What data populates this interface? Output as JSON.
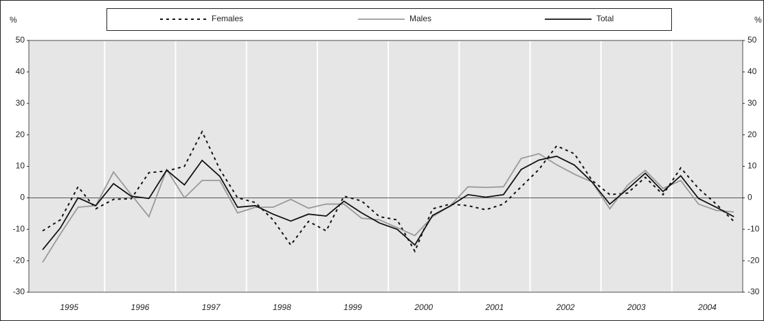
{
  "chart_data": {
    "type": "line",
    "y_unit_label": "%",
    "categories": [
      null,
      "1995",
      null,
      null,
      null,
      "1996",
      null,
      null,
      null,
      "1997",
      null,
      null,
      null,
      "1998",
      null,
      null,
      null,
      "1999",
      null,
      null,
      null,
      "2000",
      null,
      null,
      null,
      "2001",
      null,
      null,
      null,
      "2002",
      null,
      null,
      null,
      "2003",
      null,
      null,
      null,
      "2004",
      null,
      null
    ],
    "series": [
      {
        "name": "Females",
        "color": "#111111",
        "dash": "dotted",
        "values": [
          -10.5,
          -7,
          3.5,
          -3.5,
          -0.5,
          -0.3,
          8,
          8.5,
          10,
          21,
          9,
          0,
          -1.5,
          -7,
          -15,
          -7.5,
          -10.5,
          0.5,
          -1,
          -6,
          -7,
          -17,
          -3.5,
          -2,
          -2.5,
          -3.8,
          -2,
          3.5,
          9,
          16.5,
          14,
          5.5,
          1,
          1.5,
          6.5,
          1,
          9.5,
          3,
          -2,
          -7.5
        ]
      },
      {
        "name": "Males",
        "color": "#999999",
        "dash": "solid",
        "values": [
          -20.5,
          -11.5,
          -3,
          -2.5,
          8.2,
          1,
          -6,
          9,
          0,
          5.5,
          5.5,
          -4.8,
          -3,
          -3,
          -0.5,
          -3.3,
          -2,
          -2,
          -6.5,
          -7,
          -9.5,
          -12,
          -6,
          -2.5,
          3.5,
          3.3,
          3.5,
          12.5,
          14,
          10.5,
          7.5,
          5,
          -3.5,
          4,
          8.7,
          3,
          5.5,
          -2,
          -4,
          -4.5
        ]
      },
      {
        "name": "Total",
        "color": "#111111",
        "dash": "solid",
        "values": [
          -16.5,
          -9.6,
          0,
          -2.5,
          4.5,
          0.5,
          -0.2,
          8.8,
          4.1,
          11.9,
          6.8,
          -3,
          -2.5,
          -5.2,
          -7.4,
          -5.2,
          -5.8,
          -1.1,
          -4.8,
          -8,
          -10,
          -15,
          -5.6,
          -2.6,
          1,
          0.2,
          1,
          9,
          12,
          13.2,
          10.4,
          5,
          -2,
          2.8,
          7.8,
          2,
          7,
          -0.2,
          -3,
          -6
        ]
      }
    ],
    "ylim": [
      -30,
      50
    ],
    "yticks": [
      -30,
      -20,
      -10,
      0,
      10,
      20,
      30,
      40,
      50
    ],
    "grid": true,
    "legend": "top"
  }
}
